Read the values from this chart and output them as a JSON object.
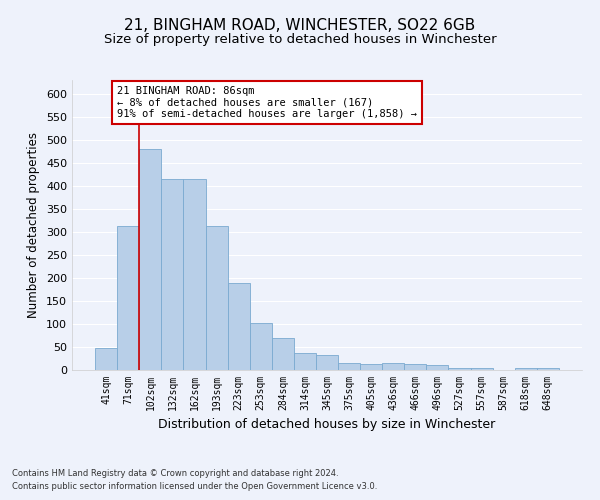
{
  "title1": "21, BINGHAM ROAD, WINCHESTER, SO22 6GB",
  "title2": "Size of property relative to detached houses in Winchester",
  "xlabel": "Distribution of detached houses by size in Winchester",
  "ylabel": "Number of detached properties",
  "categories": [
    "41sqm",
    "71sqm",
    "102sqm",
    "132sqm",
    "162sqm",
    "193sqm",
    "223sqm",
    "253sqm",
    "284sqm",
    "314sqm",
    "345sqm",
    "375sqm",
    "405sqm",
    "436sqm",
    "466sqm",
    "496sqm",
    "527sqm",
    "557sqm",
    "587sqm",
    "618sqm",
    "648sqm"
  ],
  "values": [
    47,
    312,
    480,
    415,
    415,
    312,
    190,
    102,
    70,
    38,
    32,
    15,
    13,
    15,
    12,
    10,
    5,
    5,
    0,
    5,
    5
  ],
  "bar_color": "#b8cfe8",
  "bar_edge_color": "#7aaad0",
  "vline_x": 1.5,
  "vline_color": "#cc0000",
  "annotation_text": "21 BINGHAM ROAD: 86sqm\n← 8% of detached houses are smaller (167)\n91% of semi-detached houses are larger (1,858) →",
  "annotation_box_color": "#ffffff",
  "annotation_box_edge": "#cc0000",
  "ylim": [
    0,
    630
  ],
  "yticks": [
    0,
    50,
    100,
    150,
    200,
    250,
    300,
    350,
    400,
    450,
    500,
    550,
    600
  ],
  "footnote1": "Contains HM Land Registry data © Crown copyright and database right 2024.",
  "footnote2": "Contains public sector information licensed under the Open Government Licence v3.0.",
  "bg_color": "#eef2fb",
  "grid_color": "#ffffff",
  "title1_fontsize": 11,
  "title2_fontsize": 9.5,
  "xlabel_fontsize": 9,
  "ylabel_fontsize": 8.5
}
